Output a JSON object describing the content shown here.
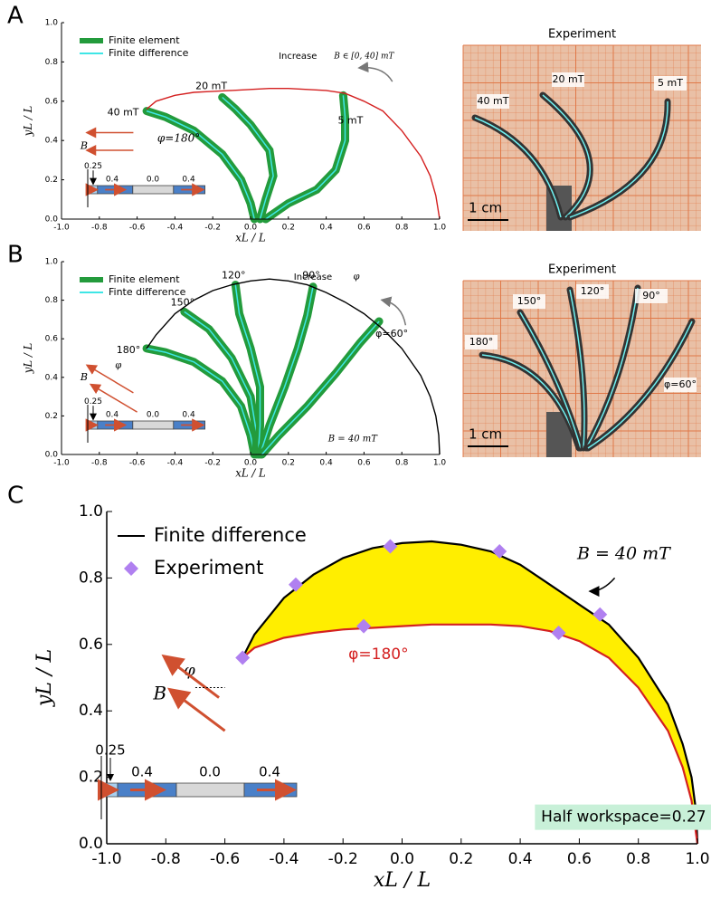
{
  "chart_data": [
    {
      "type": "line",
      "label": "A",
      "xlabel": "xL / L",
      "ylabel": "yL / L",
      "xlim": [
        -1,
        1
      ],
      "ylim": [
        0,
        1
      ],
      "xticks": [
        {
          "value": -1,
          "label": "-1.0"
        },
        {
          "value": -0.8,
          "label": "-0.8"
        },
        {
          "value": -0.6,
          "label": "-0.6"
        },
        {
          "value": -0.4,
          "label": "-0.4"
        },
        {
          "value": -0.2,
          "label": "-0.2"
        },
        {
          "value": 0,
          "label": "0.0"
        },
        {
          "value": 0.2,
          "label": "0.2"
        },
        {
          "value": 0.4,
          "label": "0.4"
        },
        {
          "value": 0.6,
          "label": "0.6"
        },
        {
          "value": 0.8,
          "label": "0.8"
        },
        {
          "value": 1,
          "label": "1.0"
        }
      ],
      "yticks": [
        {
          "value": 0,
          "label": "0.0"
        },
        {
          "value": 0.2,
          "label": "0.2"
        },
        {
          "value": 0.4,
          "label": "0.4"
        },
        {
          "value": 0.6,
          "label": "0.6"
        },
        {
          "value": 0.8,
          "label": "0.8"
        },
        {
          "value": 1,
          "label": "1.0"
        }
      ],
      "models": [
        {
          "name": "Finite element",
          "color": "#239b3c"
        },
        {
          "name": "Finite difference",
          "color": "#3fe6e6"
        }
      ],
      "series": [
        {
          "color": "#d42020",
          "x": [
            -0.55,
            -0.5,
            -0.4,
            -0.3,
            -0.2,
            -0.1,
            0,
            0.1,
            0.2,
            0.3,
            0.4,
            0.5,
            0.6,
            0.7,
            0.8,
            0.9,
            0.95,
            0.98,
            1
          ],
          "y": [
            0.56,
            0.6,
            0.63,
            0.645,
            0.65,
            0.655,
            0.66,
            0.665,
            0.665,
            0.66,
            0.655,
            0.64,
            0.6,
            0.55,
            0.45,
            0.32,
            0.22,
            0.12,
            0
          ]
        }
      ],
      "rods": [
        {
          "label": "40 mT",
          "x": [
            0.02,
            0,
            -0.05,
            -0.15,
            -0.3,
            -0.45,
            -0.55
          ],
          "y": [
            0,
            0.08,
            0.2,
            0.33,
            0.45,
            0.52,
            0.55
          ]
        },
        {
          "label": "20 mT",
          "x": [
            0.05,
            0.08,
            0.12,
            0.1,
            0,
            -0.08,
            -0.15
          ],
          "y": [
            0,
            0.1,
            0.22,
            0.35,
            0.48,
            0.56,
            0.62
          ]
        },
        {
          "label": "5 mT",
          "x": [
            0.08,
            0.2,
            0.35,
            0.45,
            0.5,
            0.5,
            0.49
          ],
          "y": [
            0,
            0.08,
            0.15,
            0.25,
            0.4,
            0.52,
            0.63
          ]
        }
      ],
      "annotations": [
        {
          "text": "Increase"
        },
        {
          "text": "B ∈ [0, 40] mT"
        },
        {
          "text": "φ=180°"
        },
        {
          "text": "B"
        }
      ],
      "inset_labels": [
        "0.25",
        "0.4",
        "0.0",
        "0.4"
      ]
    },
    {
      "type": "line",
      "label": "B",
      "xlabel": "xL / L",
      "ylabel": "yL / L",
      "xlim": [
        -1,
        1
      ],
      "ylim": [
        0,
        1
      ],
      "xticks": [
        {
          "value": -1,
          "label": "-1.0"
        },
        {
          "value": -0.8,
          "label": "-0.8"
        },
        {
          "value": -0.6,
          "label": "-0.6"
        },
        {
          "value": -0.4,
          "label": "-0.4"
        },
        {
          "value": -0.2,
          "label": "-0.2"
        },
        {
          "value": 0,
          "label": "0.0"
        },
        {
          "value": 0.2,
          "label": "0.2"
        },
        {
          "value": 0.4,
          "label": "0.4"
        },
        {
          "value": 0.6,
          "label": "0.6"
        },
        {
          "value": 0.8,
          "label": "0.8"
        },
        {
          "value": 1,
          "label": "1.0"
        }
      ],
      "yticks": [
        {
          "value": 0,
          "label": "0.0"
        },
        {
          "value": 0.2,
          "label": "0.2"
        },
        {
          "value": 0.4,
          "label": "0.4"
        },
        {
          "value": 0.6,
          "label": "0.6"
        },
        {
          "value": 0.8,
          "label": "0.8"
        },
        {
          "value": 1,
          "label": "1.0"
        }
      ],
      "models": [
        {
          "name": "Finite element",
          "color": "#239b3c"
        },
        {
          "name": "Finte difference",
          "color": "#3fe6e6"
        }
      ],
      "series": [
        {
          "color": "#000000",
          "x": [
            -0.55,
            -0.5,
            -0.4,
            -0.3,
            -0.2,
            -0.1,
            0,
            0.1,
            0.2,
            0.3,
            0.4,
            0.5,
            0.6,
            0.7,
            0.8,
            0.9,
            0.95,
            0.98,
            0.995,
            1
          ],
          "y": [
            0.55,
            0.62,
            0.73,
            0.8,
            0.85,
            0.88,
            0.9,
            0.91,
            0.9,
            0.88,
            0.84,
            0.79,
            0.73,
            0.65,
            0.55,
            0.41,
            0.3,
            0.2,
            0.1,
            0
          ]
        }
      ],
      "rods": [
        {
          "label": "180°",
          "x": [
            0.02,
            0,
            -0.05,
            -0.15,
            -0.3,
            -0.45,
            -0.55
          ],
          "y": [
            0,
            0.1,
            0.25,
            0.38,
            0.48,
            0.53,
            0.55
          ]
        },
        {
          "label": "150°",
          "x": [
            0.03,
            0.03,
            0,
            -0.1,
            -0.22,
            -0.35
          ],
          "y": [
            0,
            0.12,
            0.3,
            0.5,
            0.65,
            0.74
          ]
        },
        {
          "label": "120°",
          "x": [
            0.04,
            0.05,
            0.05,
            0,
            -0.06,
            -0.08
          ],
          "y": [
            0,
            0.15,
            0.35,
            0.55,
            0.73,
            0.88
          ]
        },
        {
          "label": "90°",
          "x": [
            0.05,
            0.1,
            0.18,
            0.25,
            0.3,
            0.33
          ],
          "y": [
            0,
            0.15,
            0.35,
            0.55,
            0.72,
            0.87
          ]
        },
        {
          "label": "φ=60°",
          "x": [
            0.06,
            0.15,
            0.3,
            0.45,
            0.58,
            0.68
          ],
          "y": [
            0,
            0.1,
            0.25,
            0.42,
            0.58,
            0.69
          ]
        }
      ],
      "annotations": [
        {
          "text": "Increase"
        },
        {
          "text": "φ"
        },
        {
          "text": "B = 40 mT"
        },
        {
          "text": "B"
        },
        {
          "text": "φ"
        }
      ],
      "inset_labels": [
        "0.25",
        "0.4",
        "0.0",
        "0.4"
      ]
    },
    {
      "type": "line",
      "label": "C",
      "xlabel": "xL / L",
      "ylabel": "yL / L",
      "xlim": [
        -1,
        1
      ],
      "ylim": [
        0,
        1
      ],
      "xticks": [
        {
          "value": -1,
          "label": "-1.0"
        },
        {
          "value": -0.8,
          "label": "-0.8"
        },
        {
          "value": -0.6,
          "label": "-0.6"
        },
        {
          "value": -0.4,
          "label": "-0.4"
        },
        {
          "value": -0.2,
          "label": "-0.2"
        },
        {
          "value": 0,
          "label": "0.0"
        },
        {
          "value": 0.2,
          "label": "0.2"
        },
        {
          "value": 0.4,
          "label": "0.4"
        },
        {
          "value": 0.6,
          "label": "0.6"
        },
        {
          "value": 0.8,
          "label": "0.8"
        },
        {
          "value": 1,
          "label": "1.0"
        }
      ],
      "yticks": [
        {
          "value": 0,
          "label": "0.0"
        },
        {
          "value": 0.2,
          "label": "0.2"
        },
        {
          "value": 0.4,
          "label": "0.4"
        },
        {
          "value": 0.6,
          "label": "0.6"
        },
        {
          "value": 0.8,
          "label": "0.8"
        },
        {
          "value": 1,
          "label": "1.0"
        }
      ],
      "fill_color": "#ffee00",
      "series": [
        {
          "name": "Finite difference",
          "color": "#000000",
          "x": [
            -0.54,
            -0.5,
            -0.4,
            -0.3,
            -0.2,
            -0.1,
            0,
            0.1,
            0.2,
            0.3,
            0.4,
            0.5,
            0.6,
            0.7,
            0.8,
            0.9,
            0.95,
            0.98,
            0.995,
            1
          ],
          "y": [
            0.56,
            0.63,
            0.74,
            0.81,
            0.86,
            0.89,
            0.905,
            0.91,
            0.9,
            0.88,
            0.84,
            0.78,
            0.72,
            0.66,
            0.56,
            0.42,
            0.3,
            0.2,
            0.1,
            0
          ]
        },
        {
          "color": "#d42020",
          "x": [
            -0.54,
            -0.5,
            -0.4,
            -0.3,
            -0.2,
            -0.1,
            0,
            0.1,
            0.2,
            0.3,
            0.4,
            0.5,
            0.6,
            0.7,
            0.8,
            0.9,
            0.95,
            0.98,
            1
          ],
          "y": [
            0.56,
            0.59,
            0.62,
            0.635,
            0.645,
            0.65,
            0.655,
            0.66,
            0.66,
            0.66,
            0.655,
            0.64,
            0.61,
            0.56,
            0.47,
            0.34,
            0.23,
            0.13,
            0
          ]
        }
      ],
      "experiment": {
        "name": "Experiment",
        "color": "#b080f0",
        "x": [
          -0.54,
          -0.36,
          -0.04,
          0.33,
          0.67,
          -0.13,
          0.53
        ],
        "y": [
          0.56,
          0.78,
          0.895,
          0.88,
          0.69,
          0.655,
          0.635
        ]
      },
      "annotations": [
        {
          "text": "B = 40 mT"
        },
        {
          "text": "φ=180°"
        },
        {
          "text": "Half workspace=0.27"
        },
        {
          "text": "B"
        },
        {
          "text": "φ"
        }
      ],
      "inset_labels": [
        "0.25",
        "0.4",
        "0.0",
        "0.4"
      ]
    }
  ],
  "photos": [
    {
      "title": "Experiment",
      "scale": "1 cm",
      "labels": [
        "40 mT",
        "20 mT",
        "5 mT"
      ]
    },
    {
      "title": "Experiment",
      "scale": "1 cm",
      "labels": [
        "180°",
        "150°",
        "120°",
        "90°",
        "φ=60°"
      ]
    }
  ]
}
